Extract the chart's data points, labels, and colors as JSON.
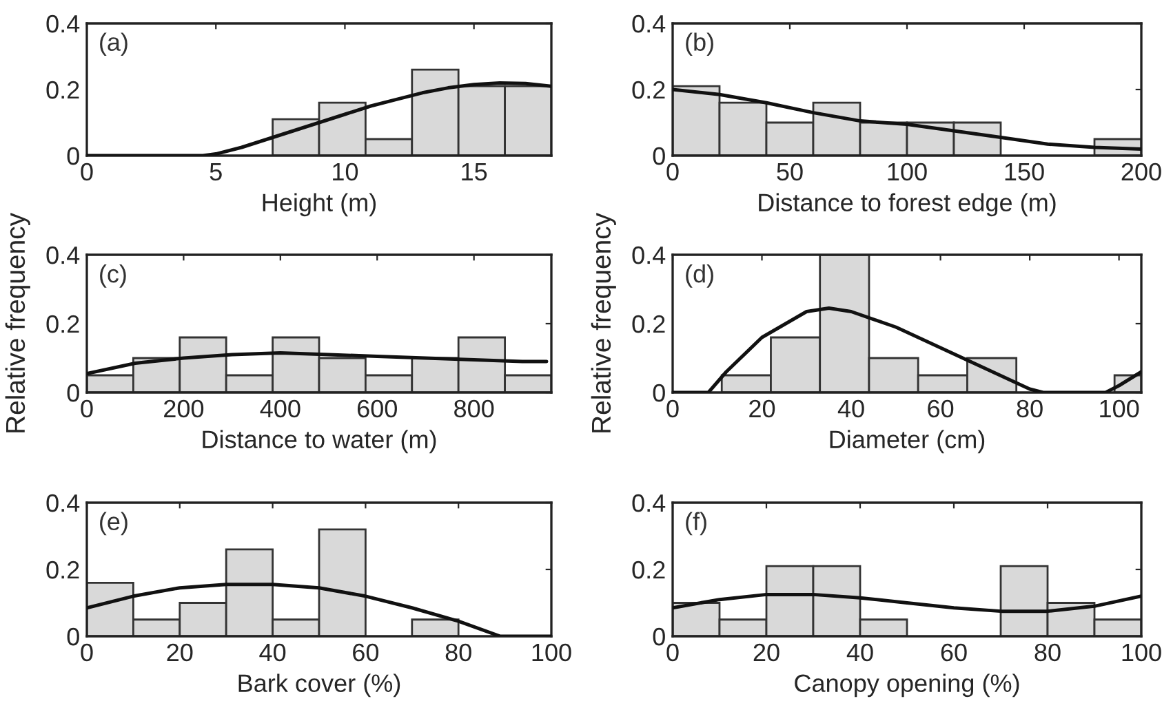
{
  "chart_data": [
    {
      "type": "histogram",
      "xlabel": "Height (m)",
      "annotations": [
        "(a)"
      ],
      "bins": [
        7.2,
        9.0,
        10.8,
        12.6,
        14.4,
        16.2,
        18.0
      ],
      "values": [
        0.11,
        0.16,
        0.05,
        0.26,
        0.21,
        0.21
      ],
      "color": "#d9d9d9",
      "xlim": [
        0,
        18
      ],
      "xticks": [
        0,
        5,
        10,
        15
      ],
      "ylim": [
        0,
        0.4
      ],
      "yticks": [
        0,
        0.2,
        0.4
      ],
      "grid": false,
      "series": [
        {
          "type": "line",
          "color": "#111111",
          "x": [
            0,
            4.5,
            5,
            6,
            7,
            8,
            9,
            10,
            11,
            12,
            13,
            14,
            15,
            16,
            17,
            18
          ],
          "values": [
            0,
            0,
            0.005,
            0.025,
            0.05,
            0.075,
            0.1,
            0.125,
            0.15,
            0.17,
            0.19,
            0.205,
            0.215,
            0.22,
            0.218,
            0.21
          ]
        }
      ]
    },
    {
      "type": "histogram",
      "xlabel": "Distance to forest edge (m)",
      "annotations": [
        "(b)"
      ],
      "bins": [
        0,
        20,
        40,
        60,
        80,
        100,
        120,
        140,
        180,
        200
      ],
      "values": [
        0.21,
        0.16,
        0.1,
        0.16,
        0.1,
        0.1,
        0.1,
        0,
        0.05
      ],
      "color": "#d9d9d9",
      "xlim": [
        0,
        200
      ],
      "xticks": [
        0,
        50,
        100,
        150,
        200
      ],
      "ylim": [
        0,
        0.4
      ],
      "yticks": [
        0,
        0.2,
        0.4
      ],
      "grid": false,
      "series": [
        {
          "type": "line",
          "color": "#111111",
          "x": [
            0,
            20,
            40,
            60,
            80,
            100,
            120,
            140,
            160,
            180,
            200
          ],
          "values": [
            0.2,
            0.185,
            0.16,
            0.13,
            0.105,
            0.095,
            0.075,
            0.055,
            0.035,
            0.025,
            0.02
          ]
        }
      ]
    },
    {
      "type": "histogram",
      "xlabel": "Distance to water (m)",
      "ylabel": "Relative frequency",
      "annotations": [
        "(c)"
      ],
      "bins": [
        0,
        96,
        192,
        288,
        384,
        480,
        576,
        672,
        768,
        864,
        960
      ],
      "values": [
        0.05,
        0.1,
        0.16,
        0.05,
        0.16,
        0.1,
        0.05,
        0.1,
        0.16,
        0.05
      ],
      "color": "#d9d9d9",
      "xlim": [
        0,
        960
      ],
      "xticks": [
        0,
        200,
        400,
        600,
        800
      ],
      "ylim": [
        0,
        0.4
      ],
      "yticks": [
        0,
        0.2,
        0.4
      ],
      "grid": false,
      "series": [
        {
          "type": "line",
          "color": "#111111",
          "x": [
            0,
            100,
            200,
            300,
            400,
            500,
            600,
            700,
            800,
            900,
            950
          ],
          "values": [
            0.055,
            0.085,
            0.1,
            0.11,
            0.115,
            0.11,
            0.105,
            0.1,
            0.095,
            0.09,
            0.09
          ]
        }
      ]
    },
    {
      "type": "histogram",
      "xlabel": "Diameter (cm)",
      "ylabel": "Relative frequency",
      "annotations": [
        "(d)"
      ],
      "bins": [
        11,
        22,
        33,
        44,
        55,
        66,
        77,
        99,
        105
      ],
      "values": [
        0.05,
        0.16,
        0.4,
        0.1,
        0.05,
        0.1,
        0,
        0.05
      ],
      "color": "#d9d9d9",
      "xlim": [
        0,
        105
      ],
      "xticks": [
        0,
        20,
        40,
        60,
        80,
        100
      ],
      "ylim": [
        0,
        0.4
      ],
      "yticks": [
        0,
        0.2,
        0.4
      ],
      "grid": false,
      "series": [
        {
          "type": "line",
          "color": "#111111",
          "x": [
            0,
            8,
            12,
            20,
            30,
            35,
            40,
            50,
            60,
            70,
            80,
            83,
            97,
            100,
            105
          ],
          "values": [
            0,
            0,
            0.06,
            0.16,
            0.235,
            0.245,
            0.235,
            0.19,
            0.13,
            0.07,
            0.01,
            0,
            0,
            0.02,
            0.06
          ]
        }
      ]
    },
    {
      "type": "histogram",
      "xlabel": "Bark cover (%)",
      "annotations": [
        "(e)"
      ],
      "bins": [
        0,
        10,
        20,
        30,
        40,
        50,
        60,
        70,
        80
      ],
      "values": [
        0.16,
        0.05,
        0.1,
        0.26,
        0.05,
        0.32,
        0,
        0.05
      ],
      "color": "#d9d9d9",
      "xlim": [
        0,
        100
      ],
      "xticks": [
        0,
        20,
        40,
        60,
        80,
        100
      ],
      "ylim": [
        0,
        0.4
      ],
      "yticks": [
        0,
        0.2,
        0.4
      ],
      "grid": false,
      "series": [
        {
          "type": "line",
          "color": "#111111",
          "x": [
            0,
            10,
            20,
            30,
            40,
            50,
            60,
            70,
            80,
            89,
            100
          ],
          "values": [
            0.085,
            0.12,
            0.145,
            0.155,
            0.155,
            0.145,
            0.12,
            0.085,
            0.045,
            0,
            0
          ]
        }
      ]
    },
    {
      "type": "histogram",
      "xlabel": "Canopy opening (%)",
      "annotations": [
        "(f)"
      ],
      "bins": [
        0,
        10,
        20,
        30,
        40,
        50,
        70,
        80,
        90,
        100
      ],
      "values": [
        0.1,
        0.05,
        0.21,
        0.21,
        0.05,
        0,
        0.21,
        0.1,
        0.05
      ],
      "color": "#d9d9d9",
      "xlim": [
        0,
        100
      ],
      "xticks": [
        0,
        20,
        40,
        60,
        80,
        100
      ],
      "ylim": [
        0,
        0.4
      ],
      "yticks": [
        0,
        0.2,
        0.4
      ],
      "grid": false,
      "series": [
        {
          "type": "line",
          "color": "#111111",
          "x": [
            0,
            10,
            20,
            30,
            40,
            50,
            60,
            70,
            80,
            90,
            100
          ],
          "values": [
            0.085,
            0.11,
            0.125,
            0.125,
            0.115,
            0.1,
            0.085,
            0.075,
            0.075,
            0.09,
            0.12
          ]
        }
      ]
    }
  ]
}
